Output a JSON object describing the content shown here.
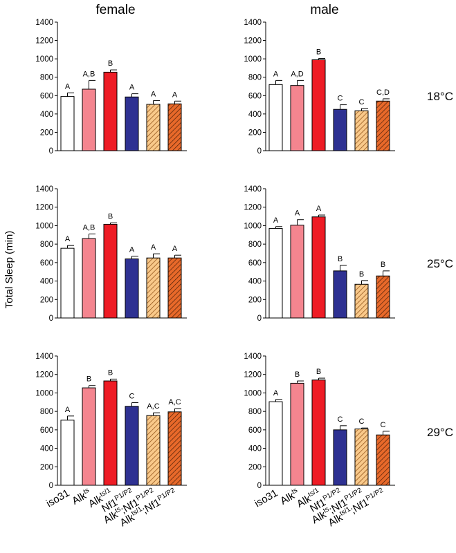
{
  "column_headers": [
    "female",
    "male"
  ],
  "row_labels": [
    "18°C",
    "25°C",
    "29°C"
  ],
  "y_axis_label": "Total Sleep (min)",
  "categories": [
    {
      "base": "iso31",
      "sup": ""
    },
    {
      "base": "Alk",
      "sup": "ts"
    },
    {
      "base": "Alk",
      "sup": "ts/1"
    },
    {
      "base": "Nf1",
      "sup": "P1/P2"
    },
    {
      "base": "Alk",
      "sup": "ts",
      "base2": ";Nf1",
      "sup2": "P1/P2"
    },
    {
      "base": "Alk",
      "sup": "ts/1",
      "base2": ";Nf1",
      "sup2": "P1/P2"
    }
  ],
  "bar_styles": [
    {
      "fill": "#ffffff",
      "hatch": false,
      "hatch_color": ""
    },
    {
      "fill": "#f4858f",
      "hatch": false,
      "hatch_color": ""
    },
    {
      "fill": "#ee1c25",
      "hatch": false,
      "hatch_color": ""
    },
    {
      "fill": "#2e3192",
      "hatch": false,
      "hatch_color": ""
    },
    {
      "fill": "#f9c98a",
      "hatch": true,
      "hatch_color": "#8a4a10"
    },
    {
      "fill": "#e8692a",
      "hatch": true,
      "hatch_color": "#4a1e08"
    }
  ],
  "chart_data": [
    {
      "type": "bar",
      "panel": "female 18°C",
      "ylim": [
        0,
        1400
      ],
      "yticks": [
        0,
        200,
        400,
        600,
        800,
        1000,
        1200,
        1400
      ],
      "categories": [
        "iso31",
        "Alkts",
        "Alkts/1",
        "Nf1P1/P2",
        "Alkts;Nf1P1/P2",
        "Alkts/1;Nf1P1/P2"
      ],
      "values": [
        590,
        670,
        855,
        585,
        505,
        510
      ],
      "errors": [
        40,
        95,
        25,
        35,
        40,
        30
      ],
      "letters": [
        "A",
        "A,B",
        "B",
        "A",
        "A",
        "A"
      ]
    },
    {
      "type": "bar",
      "panel": "male 18°C",
      "ylim": [
        0,
        1400
      ],
      "yticks": [
        0,
        200,
        400,
        600,
        800,
        1000,
        1200,
        1400
      ],
      "categories": [
        "iso31",
        "Alkts",
        "Alkts/1",
        "Nf1P1/P2",
        "Alkts;Nf1P1/P2",
        "Alkts/1;Nf1P1/P2"
      ],
      "values": [
        720,
        710,
        990,
        450,
        435,
        540
      ],
      "errors": [
        45,
        55,
        15,
        50,
        25,
        25
      ],
      "letters": [
        "A",
        "A,D",
        "B",
        "C",
        "C",
        "C,D"
      ]
    },
    {
      "type": "bar",
      "panel": "female 25°C",
      "ylim": [
        0,
        1400
      ],
      "yticks": [
        0,
        200,
        400,
        600,
        800,
        1000,
        1200,
        1400
      ],
      "categories": [
        "iso31",
        "Alkts",
        "Alkts/1",
        "Nf1P1/P2",
        "Alkts;Nf1P1/P2",
        "Alkts/1;Nf1P1/P2"
      ],
      "values": [
        755,
        860,
        1015,
        640,
        650,
        650
      ],
      "errors": [
        30,
        50,
        15,
        30,
        45,
        30
      ],
      "letters": [
        "A",
        "A,B",
        "B",
        "A",
        "A",
        "A"
      ]
    },
    {
      "type": "bar",
      "panel": "male 25°C",
      "ylim": [
        0,
        1400
      ],
      "yticks": [
        0,
        200,
        400,
        600,
        800,
        1000,
        1200,
        1400
      ],
      "categories": [
        "iso31",
        "Alkts",
        "Alkts/1",
        "Nf1P1/P2",
        "Alkts;Nf1P1/P2",
        "Alkts/1;Nf1P1/P2"
      ],
      "values": [
        970,
        1005,
        1095,
        510,
        365,
        455
      ],
      "errors": [
        20,
        60,
        20,
        60,
        40,
        55
      ],
      "letters": [
        "A",
        "A",
        "A",
        "B",
        "B",
        "B"
      ]
    },
    {
      "type": "bar",
      "panel": "female 29°C",
      "ylim": [
        0,
        1400
      ],
      "yticks": [
        0,
        200,
        400,
        600,
        800,
        1000,
        1200,
        1400
      ],
      "categories": [
        "iso31",
        "Alkts",
        "Alkts/1",
        "Nf1P1/P2",
        "Alkts;Nf1P1/P2",
        "Alkts/1;Nf1P1/P2"
      ],
      "values": [
        705,
        1055,
        1130,
        855,
        755,
        795
      ],
      "errors": [
        45,
        25,
        20,
        40,
        30,
        35
      ],
      "letters": [
        "A",
        "B",
        "B",
        "C",
        "A,C",
        "A,C"
      ]
    },
    {
      "type": "bar",
      "panel": "male 29°C",
      "ylim": [
        0,
        1400
      ],
      "yticks": [
        0,
        200,
        400,
        600,
        800,
        1000,
        1200,
        1400
      ],
      "categories": [
        "iso31",
        "Alkts",
        "Alkts/1",
        "Nf1P1/P2",
        "Alkts;Nf1P1/P2",
        "Alkts/1;Nf1P1/P2"
      ],
      "values": [
        905,
        1105,
        1140,
        600,
        610,
        545
      ],
      "errors": [
        25,
        25,
        20,
        45,
        10,
        40
      ],
      "letters": [
        "A",
        "B",
        "B",
        "C",
        "C",
        "C"
      ]
    }
  ]
}
